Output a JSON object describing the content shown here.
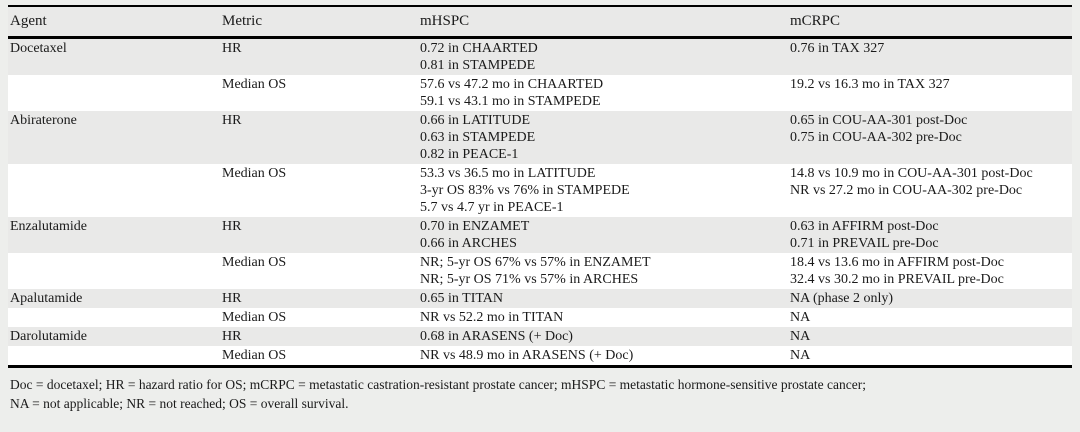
{
  "table": {
    "headers": [
      "Agent",
      "Metric",
      "mHSPC",
      "mCRPC"
    ],
    "rows": [
      {
        "agent": "Docetaxel",
        "metric": "HR",
        "shaded": true,
        "mhspc": [
          "0.72 in CHAARTED",
          "0.81 in STAMPEDE"
        ],
        "mcrpc": [
          "0.76 in TAX 327"
        ]
      },
      {
        "agent": "",
        "metric": "Median OS",
        "shaded": false,
        "mhspc": [
          "57.6 vs 47.2 mo in CHAARTED",
          "59.1 vs 43.1 mo in STAMPEDE"
        ],
        "mcrpc": [
          "19.2 vs 16.3 mo in TAX 327"
        ]
      },
      {
        "agent": "Abiraterone",
        "metric": "HR",
        "shaded": true,
        "mhspc": [
          "0.66 in LATITUDE",
          "0.63 in STAMPEDE",
          "0.82 in PEACE-1"
        ],
        "mcrpc": [
          "0.65 in COU-AA-301 post-Doc",
          "0.75 in COU-AA-302 pre-Doc"
        ]
      },
      {
        "agent": "",
        "metric": "Median OS",
        "shaded": false,
        "mhspc": [
          "53.3 vs 36.5 mo in LATITUDE",
          "3-yr OS 83% vs 76% in STAMPEDE",
          "5.7 vs 4.7 yr in PEACE-1"
        ],
        "mcrpc": [
          "14.8 vs 10.9 mo in COU-AA-301 post-Doc",
          "NR vs 27.2 mo in COU-AA-302 pre-Doc"
        ]
      },
      {
        "agent": "Enzalutamide",
        "metric": "HR",
        "shaded": true,
        "mhspc": [
          "0.70 in ENZAMET",
          "0.66 in ARCHES"
        ],
        "mcrpc": [
          "0.63 in AFFIRM post-Doc",
          "0.71 in PREVAIL pre-Doc"
        ]
      },
      {
        "agent": "",
        "metric": "Median OS",
        "shaded": false,
        "mhspc": [
          "NR; 5-yr OS 67% vs 57% in ENZAMET",
          "NR; 5-yr OS 71% vs 57% in ARCHES"
        ],
        "mcrpc": [
          "18.4 vs 13.6 mo in AFFIRM post-Doc",
          "32.4 vs 30.2 mo in PREVAIL pre-Doc"
        ]
      },
      {
        "agent": "Apalutamide",
        "metric": "HR",
        "shaded": true,
        "mhspc": [
          "0.65 in TITAN"
        ],
        "mcrpc": [
          "NA (phase 2 only)"
        ]
      },
      {
        "agent": "",
        "metric": "Median OS",
        "shaded": false,
        "mhspc": [
          "NR vs 52.2 mo in TITAN"
        ],
        "mcrpc": [
          "NA"
        ]
      },
      {
        "agent": "Darolutamide",
        "metric": "HR",
        "shaded": true,
        "mhspc": [
          "0.68 in ARASENS (+ Doc)"
        ],
        "mcrpc": [
          "NA"
        ]
      },
      {
        "agent": "",
        "metric": "Median OS",
        "shaded": false,
        "mhspc": [
          "NR vs 48.9 mo in ARASENS (+ Doc)"
        ],
        "mcrpc": [
          "NA"
        ]
      }
    ],
    "footnote_lines": [
      "Doc = docetaxel; HR = hazard ratio for OS; mCRPC = metastatic castration-resistant prostate cancer; mHSPC = metastatic hormone-sensitive prostate cancer;",
      "NA = not applicable; NR = not reached; OS = overall survival."
    ]
  },
  "colors": {
    "band_gray": "#e9e9e8",
    "page_background": "#edeeec",
    "rule_black": "#000000",
    "text": "#1a1a1a"
  }
}
